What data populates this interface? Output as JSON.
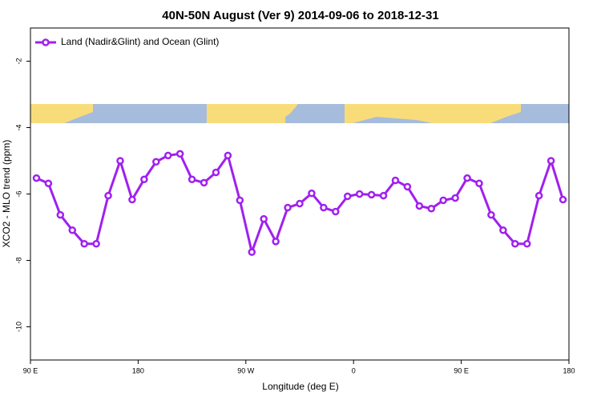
{
  "chart_data": {
    "type": "line",
    "title": "40N-50N August (Ver 9)   2014-09-06 to 2018-12-31",
    "x_label": "Longitude (deg E)",
    "y_label": "XCO2 - MLO trend (ppm)",
    "legend_position": "upper left",
    "x": [
      95,
      105,
      115,
      125,
      135,
      145,
      155,
      165,
      175,
      185,
      195,
      205,
      215,
      225,
      235,
      245,
      255,
      265,
      275,
      285,
      295,
      305,
      315,
      325,
      335,
      345,
      355,
      365,
      375,
      385,
      395,
      405,
      415,
      425,
      435,
      445,
      455,
      465,
      475,
      485,
      495,
      505,
      515,
      525,
      535
    ],
    "series": [
      {
        "name": "Land (Nadir&Glint) and Ocean (Glint)",
        "color": "#a020f0",
        "values": [
          -5.52,
          -5.68,
          -6.63,
          -7.09,
          -7.5,
          -7.5,
          -6.05,
          -5.0,
          -6.17,
          -5.56,
          -5.03,
          -4.84,
          -4.79,
          -5.56,
          -5.66,
          -5.35,
          -4.84,
          -6.19,
          -7.75,
          -6.75,
          -7.43,
          -6.41,
          -6.29,
          -5.98,
          -6.41,
          -6.53,
          -6.07,
          -6.0,
          -6.02,
          -6.05,
          -5.59,
          -5.78,
          -6.36,
          -6.44,
          -6.19,
          -6.12,
          -5.52,
          -5.68,
          -6.63,
          -7.09,
          -7.5,
          -7.5,
          -6.05,
          -5.0,
          -6.17
        ]
      }
    ],
    "xlim": [
      90,
      540
    ],
    "xticks": [
      {
        "value": 90,
        "label": "90 E"
      },
      180,
      {
        "value": 270,
        "label": "90 W"
      },
      {
        "value": 360,
        "label": "0"
      },
      {
        "value": 450,
        "label": "90 E"
      },
      {
        "value": 540,
        "label": "180"
      }
    ],
    "ylim": [
      -11,
      -1
    ],
    "yticks": [
      -10,
      -8,
      -6,
      -4,
      -2
    ]
  }
}
